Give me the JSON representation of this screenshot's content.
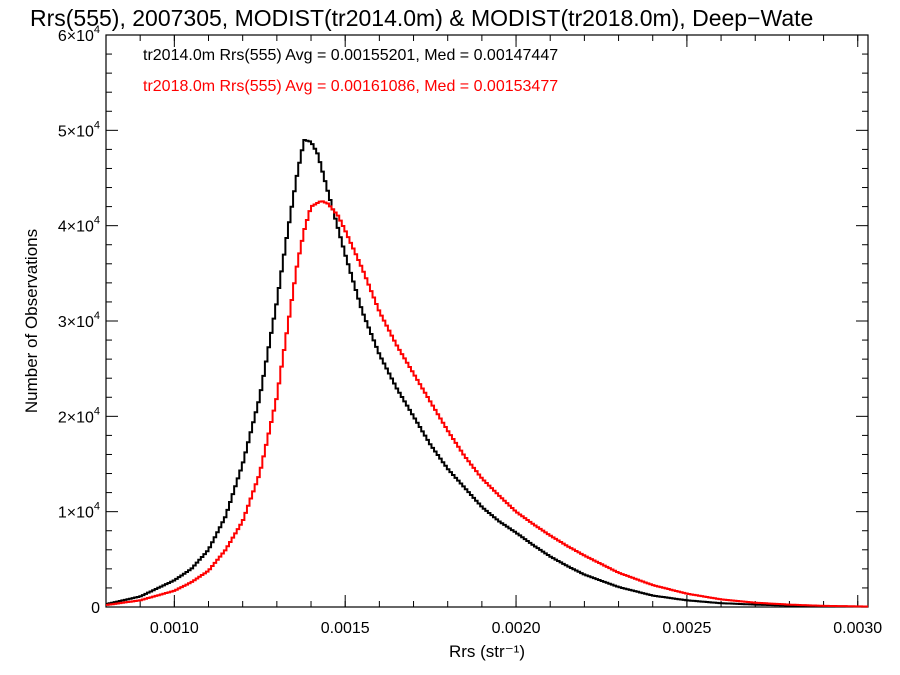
{
  "chart_data": {
    "type": "line",
    "title": "Rrs(555), 2007305, MODIST(tr2014.0m) & MODIST(tr2018.0m), Deep−Wate",
    "xlabel": "Rrs (str⁻¹)",
    "ylabel": "Number of Observations",
    "xlim": [
      0.0008,
      0.00303
    ],
    "ylim": [
      0,
      60000
    ],
    "x_ticks": [
      {
        "value": 0.001,
        "label": "0.0010"
      },
      {
        "value": 0.0015,
        "label": "0.0015"
      },
      {
        "value": 0.002,
        "label": "0.0020"
      },
      {
        "value": 0.0025,
        "label": "0.0025"
      },
      {
        "value": 0.003,
        "label": "0.0030"
      }
    ],
    "y_ticks": [
      {
        "value": 0,
        "label": "0"
      },
      {
        "value": 10000,
        "label": "1×10",
        "exp": "4"
      },
      {
        "value": 20000,
        "label": "2×10",
        "exp": "4"
      },
      {
        "value": 30000,
        "label": "3×10",
        "exp": "4"
      },
      {
        "value": 40000,
        "label": "4×10",
        "exp": "4"
      },
      {
        "value": 50000,
        "label": "5×10",
        "exp": "4"
      },
      {
        "value": 60000,
        "label": "6×10",
        "exp": "4"
      }
    ],
    "grid": false,
    "series": [
      {
        "color": "#000000",
        "annotation": "tr2014.0m Rrs(555) Avg = 0.00155201, Med = 0.00147447",
        "points": [
          [
            0.0008,
            300
          ],
          [
            0.0009,
            1100
          ],
          [
            0.001,
            2800
          ],
          [
            0.00105,
            4000
          ],
          [
            0.0011,
            6000
          ],
          [
            0.00115,
            9500
          ],
          [
            0.0012,
            15000
          ],
          [
            0.00125,
            22000
          ],
          [
            0.0013,
            32000
          ],
          [
            0.00133,
            39000
          ],
          [
            0.00136,
            45500
          ],
          [
            0.00138,
            49000
          ],
          [
            0.0014,
            48800
          ],
          [
            0.00142,
            47500
          ],
          [
            0.00145,
            43500
          ],
          [
            0.0015,
            37000
          ],
          [
            0.00155,
            31000
          ],
          [
            0.0016,
            26500
          ],
          [
            0.00165,
            23000
          ],
          [
            0.0017,
            20000
          ],
          [
            0.00175,
            17000
          ],
          [
            0.0018,
            14500
          ],
          [
            0.00185,
            12500
          ],
          [
            0.0019,
            10500
          ],
          [
            0.00195,
            9000
          ],
          [
            0.002,
            7800
          ],
          [
            0.00205,
            6500
          ],
          [
            0.0021,
            5300
          ],
          [
            0.00215,
            4300
          ],
          [
            0.0022,
            3400
          ],
          [
            0.0023,
            2100
          ],
          [
            0.0024,
            1200
          ],
          [
            0.0025,
            700
          ],
          [
            0.0026,
            400
          ],
          [
            0.0027,
            250
          ],
          [
            0.0028,
            150
          ],
          [
            0.0029,
            80
          ],
          [
            0.00303,
            40
          ]
        ]
      },
      {
        "color": "#ff0000",
        "annotation": "tr2018.0m Rrs(555) Avg = 0.00161086, Med = 0.00153477",
        "points": [
          [
            0.0008,
            200
          ],
          [
            0.0009,
            700
          ],
          [
            0.001,
            1700
          ],
          [
            0.00105,
            2600
          ],
          [
            0.0011,
            3800
          ],
          [
            0.00115,
            6000
          ],
          [
            0.0012,
            9000
          ],
          [
            0.00125,
            14000
          ],
          [
            0.0013,
            22000
          ],
          [
            0.00133,
            29000
          ],
          [
            0.00136,
            36000
          ],
          [
            0.00138,
            39500
          ],
          [
            0.0014,
            42000
          ],
          [
            0.00143,
            42600
          ],
          [
            0.00145,
            42300
          ],
          [
            0.00148,
            41000
          ],
          [
            0.0015,
            39500
          ],
          [
            0.00155,
            35500
          ],
          [
            0.0016,
            31000
          ],
          [
            0.00165,
            27500
          ],
          [
            0.0017,
            24500
          ],
          [
            0.00175,
            21500
          ],
          [
            0.0018,
            18500
          ],
          [
            0.00185,
            15800
          ],
          [
            0.0019,
            13500
          ],
          [
            0.00195,
            11700
          ],
          [
            0.002,
            10000
          ],
          [
            0.00205,
            8700
          ],
          [
            0.0021,
            7500
          ],
          [
            0.00215,
            6400
          ],
          [
            0.0022,
            5400
          ],
          [
            0.0023,
            3600
          ],
          [
            0.0024,
            2300
          ],
          [
            0.0025,
            1400
          ],
          [
            0.0026,
            800
          ],
          [
            0.0027,
            450
          ],
          [
            0.0028,
            250
          ],
          [
            0.0029,
            120
          ],
          [
            0.00303,
            50
          ]
        ]
      }
    ]
  }
}
